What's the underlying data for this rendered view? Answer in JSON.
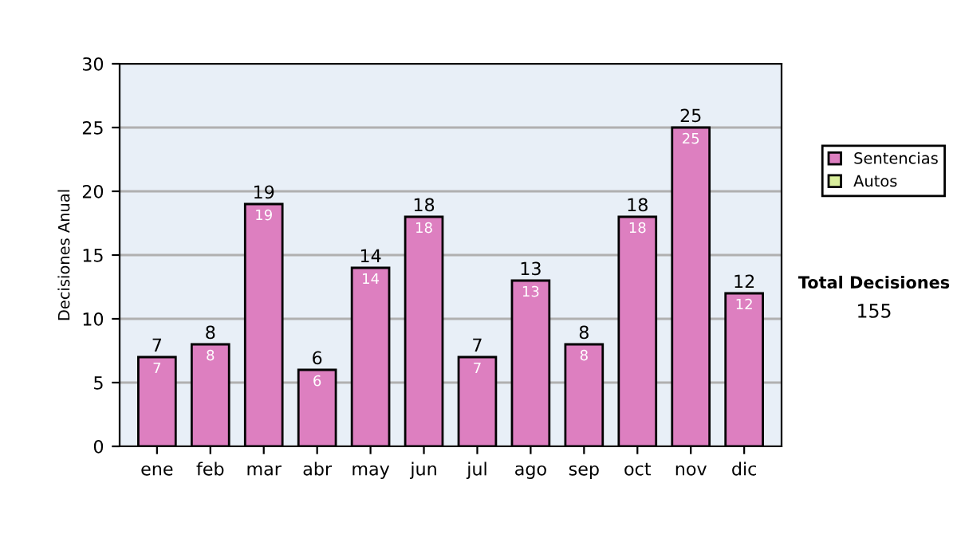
{
  "chart_data": {
    "type": "bar",
    "ylabel": "Decisiones Anual",
    "categories": [
      "ene",
      "feb",
      "mar",
      "abr",
      "may",
      "jun",
      "jul",
      "ago",
      "sep",
      "oct",
      "nov",
      "dic"
    ],
    "series": [
      {
        "name": "Sentencias",
        "color": "#dd7fc0",
        "values": [
          7,
          8,
          19,
          6,
          14,
          18,
          7,
          13,
          8,
          18,
          25,
          12
        ],
        "value_labels": [
          "7",
          "8",
          "19",
          "6",
          "14",
          "18",
          "7",
          "13",
          "8",
          "18",
          "25",
          "12"
        ]
      },
      {
        "name": "Autos",
        "color": "#d9ee9c",
        "values": [
          0,
          0,
          0,
          0,
          0,
          0,
          0,
          0,
          0,
          0,
          0,
          0
        ]
      }
    ],
    "totals": [
      "7",
      "8",
      "19",
      "6",
      "14",
      "18",
      "7",
      "13",
      "8",
      "18",
      "25",
      "12"
    ],
    "ylim": [
      0,
      30
    ],
    "yticks": [
      0,
      5,
      10,
      15,
      20,
      25,
      30
    ],
    "grid": "y",
    "legend": "right",
    "annotations": [
      "Total Decisiones",
      "155"
    ]
  }
}
